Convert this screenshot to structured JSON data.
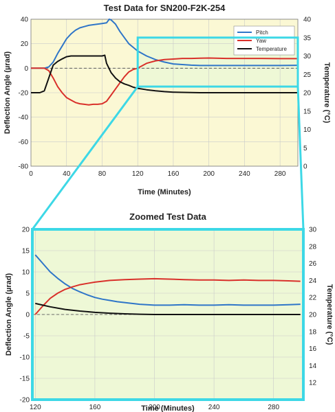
{
  "chart_data": [
    {
      "type": "line",
      "title": "Test Data for SN200-F2K-254",
      "xlabel": "Time (Minutes)",
      "ylabel": "Deflection Angle (µrad)",
      "y2label": "Temperature (°C)",
      "xlim": [
        0,
        300
      ],
      "ylim": [
        -80,
        40
      ],
      "y2lim": [
        0,
        40
      ],
      "xticks": [
        0,
        40,
        80,
        120,
        160,
        200,
        240,
        280
      ],
      "yticks": [
        -80,
        -60,
        -40,
        -20,
        0,
        20,
        40
      ],
      "y2ticks": [
        0,
        5,
        10,
        15,
        20,
        25,
        30,
        35,
        40
      ],
      "background": "#fbf8d4",
      "zoom_region_background": "#eef8d6",
      "legend": {
        "placement": "top-right",
        "entries": [
          "Pitch",
          "Yaw",
          "Temperature"
        ]
      },
      "series": [
        {
          "name": "Pitch",
          "axis": "left",
          "color": "#2e75c8",
          "x": [
            0,
            10,
            15,
            20,
            25,
            30,
            35,
            40,
            45,
            50,
            55,
            60,
            65,
            70,
            75,
            80,
            85,
            88,
            90,
            95,
            100,
            105,
            110,
            115,
            120,
            130,
            140,
            150,
            160,
            170,
            180,
            190,
            200,
            220,
            240,
            260,
            280,
            300
          ],
          "y": [
            0,
            0,
            0,
            1,
            5,
            12,
            18,
            24,
            28,
            31,
            33,
            34,
            35,
            35.5,
            36,
            36.5,
            37,
            40,
            39.5,
            36,
            30,
            25,
            20,
            17,
            14,
            10,
            7,
            5,
            3.5,
            3,
            2.5,
            2.2,
            2.2,
            2.2,
            2.2,
            2.2,
            2.2,
            2.4
          ]
        },
        {
          "name": "Yaw",
          "axis": "left",
          "color": "#d9302a",
          "x": [
            0,
            10,
            15,
            20,
            25,
            30,
            35,
            40,
            45,
            50,
            55,
            60,
            65,
            70,
            75,
            80,
            85,
            90,
            95,
            100,
            105,
            110,
            115,
            120,
            130,
            140,
            150,
            160,
            170,
            180,
            190,
            200,
            220,
            240,
            260,
            280,
            300
          ],
          "y": [
            0,
            0,
            0,
            -2,
            -8,
            -15,
            -20,
            -24,
            -26,
            -28,
            -29,
            -29.5,
            -30,
            -29.5,
            -29.5,
            -29,
            -27,
            -22,
            -17,
            -12,
            -7,
            -3,
            -1,
            0,
            4,
            6,
            7,
            7.5,
            8,
            8,
            8.2,
            8.3,
            8,
            8,
            8,
            7.8,
            7.8
          ]
        },
        {
          "name": "Temperature",
          "axis": "right",
          "color": "#111111",
          "x": [
            0,
            10,
            15,
            20,
            25,
            30,
            35,
            40,
            45,
            50,
            55,
            60,
            65,
            70,
            75,
            80,
            83,
            85,
            90,
            95,
            100,
            105,
            110,
            115,
            120,
            130,
            140,
            150,
            160,
            170,
            180,
            190,
            200,
            240,
            280,
            300
          ],
          "y": [
            20,
            20,
            20.5,
            24,
            27.5,
            28.5,
            29.2,
            29.8,
            30,
            30,
            30,
            30,
            30,
            30,
            30,
            30,
            30.2,
            28,
            25.5,
            24,
            23,
            22.4,
            22,
            21.5,
            21.2,
            20.8,
            20.5,
            20.3,
            20.15,
            20.1,
            20.05,
            20,
            20,
            20,
            20,
            20
          ]
        }
      ],
      "reference_line": {
        "y": 0,
        "style": "dashed"
      }
    },
    {
      "type": "line",
      "title": "Zoomed Test Data",
      "xlabel": "Time (Minutes)",
      "ylabel": "Deflection Angle (µrad)",
      "y2label": "Temperature (°C)",
      "xlim": [
        118,
        300
      ],
      "ylim": [
        -20,
        20
      ],
      "y2lim": [
        10,
        30
      ],
      "xticks": [
        120,
        160,
        200,
        240,
        280
      ],
      "yticks": [
        -20,
        -15,
        -10,
        -5,
        0,
        5,
        10,
        15,
        20
      ],
      "y2ticks": [
        12,
        14,
        16,
        18,
        20,
        22,
        24,
        26,
        28,
        30
      ],
      "background": "#eef8d6",
      "series": [
        {
          "name": "Pitch",
          "axis": "left",
          "color": "#2e75c8",
          "x": [
            120,
            125,
            130,
            135,
            140,
            145,
            150,
            155,
            160,
            165,
            170,
            175,
            180,
            185,
            190,
            195,
            200,
            210,
            220,
            230,
            240,
            250,
            260,
            270,
            280,
            290,
            298
          ],
          "y": [
            14,
            12,
            10,
            8.5,
            7.2,
            6.1,
            5.3,
            4.6,
            4,
            3.6,
            3.3,
            3,
            2.8,
            2.6,
            2.4,
            2.3,
            2.2,
            2.2,
            2.3,
            2.2,
            2.2,
            2.3,
            2.2,
            2.2,
            2.2,
            2.3,
            2.4
          ]
        },
        {
          "name": "Yaw",
          "axis": "left",
          "color": "#d9302a",
          "x": [
            120,
            125,
            130,
            135,
            140,
            145,
            150,
            155,
            160,
            165,
            170,
            180,
            190,
            200,
            210,
            220,
            230,
            240,
            250,
            260,
            270,
            280,
            290,
            298
          ],
          "y": [
            0,
            2,
            3.8,
            5,
            5.9,
            6.5,
            7,
            7.3,
            7.6,
            7.8,
            8,
            8.2,
            8.3,
            8.4,
            8.3,
            8.2,
            8.1,
            8.1,
            8,
            8.1,
            8,
            8,
            7.9,
            7.8
          ]
        },
        {
          "name": "Temperature",
          "axis": "right",
          "color": "#111111",
          "x": [
            120,
            125,
            130,
            140,
            150,
            160,
            170,
            180,
            190,
            200,
            220,
            240,
            260,
            280,
            298
          ],
          "y": [
            21.3,
            21.1,
            20.9,
            20.6,
            20.4,
            20.25,
            20.15,
            20.08,
            20.03,
            20,
            20,
            20,
            20,
            20,
            20
          ]
        }
      ],
      "reference_line": {
        "y": 0,
        "style": "dashed"
      }
    }
  ],
  "zoom_connector_color": "#3dd8e6"
}
